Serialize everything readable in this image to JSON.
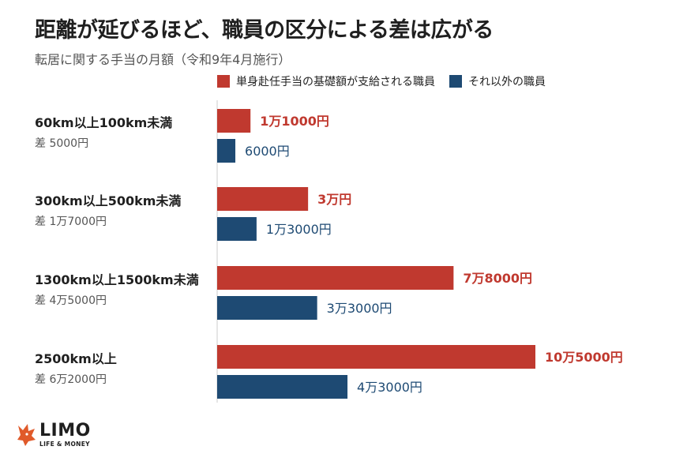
{
  "title": "距離が延びるほど、職員の区分による差は広がる",
  "subtitle": "転居に関する手当の月額（令和9年4月施行）",
  "colors": {
    "series1": "#c0392f",
    "series2": "#1e4a73",
    "axis": "#cccccc",
    "label1": "#c0392f",
    "label2": "#1e4a73"
  },
  "chart_data": {
    "type": "bar",
    "orientation": "horizontal",
    "grid": false,
    "legend_position": "top",
    "categories": [
      "60km以上100km未満",
      "300km以上500km未満",
      "1300km以上1500km未満",
      "2500km以上"
    ],
    "category_notes": [
      "差 5000円",
      "差 1万7000円",
      "差 4万5000円",
      "差 6万2000円"
    ],
    "series": [
      {
        "name": "単身赴任手当の基礎額が支給される職員",
        "values": [
          11000,
          30000,
          78000,
          105000
        ],
        "labels": [
          "1万1000円",
          "3万円",
          "7万8000円",
          "10万5000円"
        ]
      },
      {
        "name": "それ以外の職員",
        "values": [
          6000,
          13000,
          33000,
          43000
        ],
        "labels": [
          "6000円",
          "1万3000円",
          "3万3000円",
          "4万3000円"
        ]
      }
    ],
    "xlim": [
      0,
      105000
    ]
  },
  "logo": {
    "name": "LIMO",
    "tagline": "LIFE & MONEY"
  }
}
